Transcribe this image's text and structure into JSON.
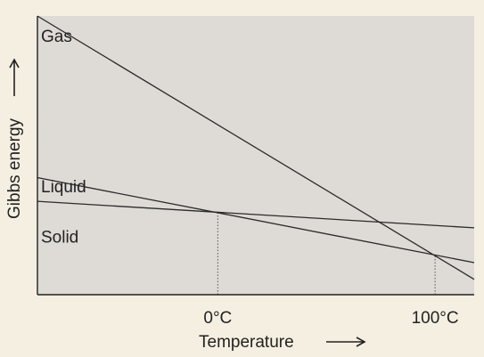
{
  "colors": {
    "page_background": "#f5efe1",
    "plot_background": "#dedbd6",
    "axis": "#222222",
    "line": "#2a2a2a",
    "reference": "#555555"
  },
  "chart_data": {
    "type": "line",
    "title": "",
    "xlabel": "Temperature",
    "ylabel": "Gibbs energy",
    "x_axis_arrow": "right-arrow",
    "y_axis_arrow": "up-arrow",
    "x_ticks": [
      {
        "label": "0°C",
        "value": 0
      },
      {
        "label": "100°C",
        "value": 100
      }
    ],
    "xlim": [
      -83,
      118
    ],
    "ylim": [
      0,
      1
    ],
    "grid": false,
    "series": [
      {
        "name": "Gas",
        "x": [
          -83,
          118
        ],
        "y": [
          1.0,
          0.055
        ]
      },
      {
        "name": "Liquid",
        "x": [
          -83,
          118
        ],
        "y": [
          0.42,
          0.115
        ]
      },
      {
        "name": "Solid",
        "x": [
          -83,
          118
        ],
        "y": [
          0.335,
          0.24
        ]
      }
    ],
    "reference_lines": [
      {
        "x": 0,
        "style": "dotted"
      },
      {
        "x": 100,
        "style": "dotted"
      }
    ]
  }
}
